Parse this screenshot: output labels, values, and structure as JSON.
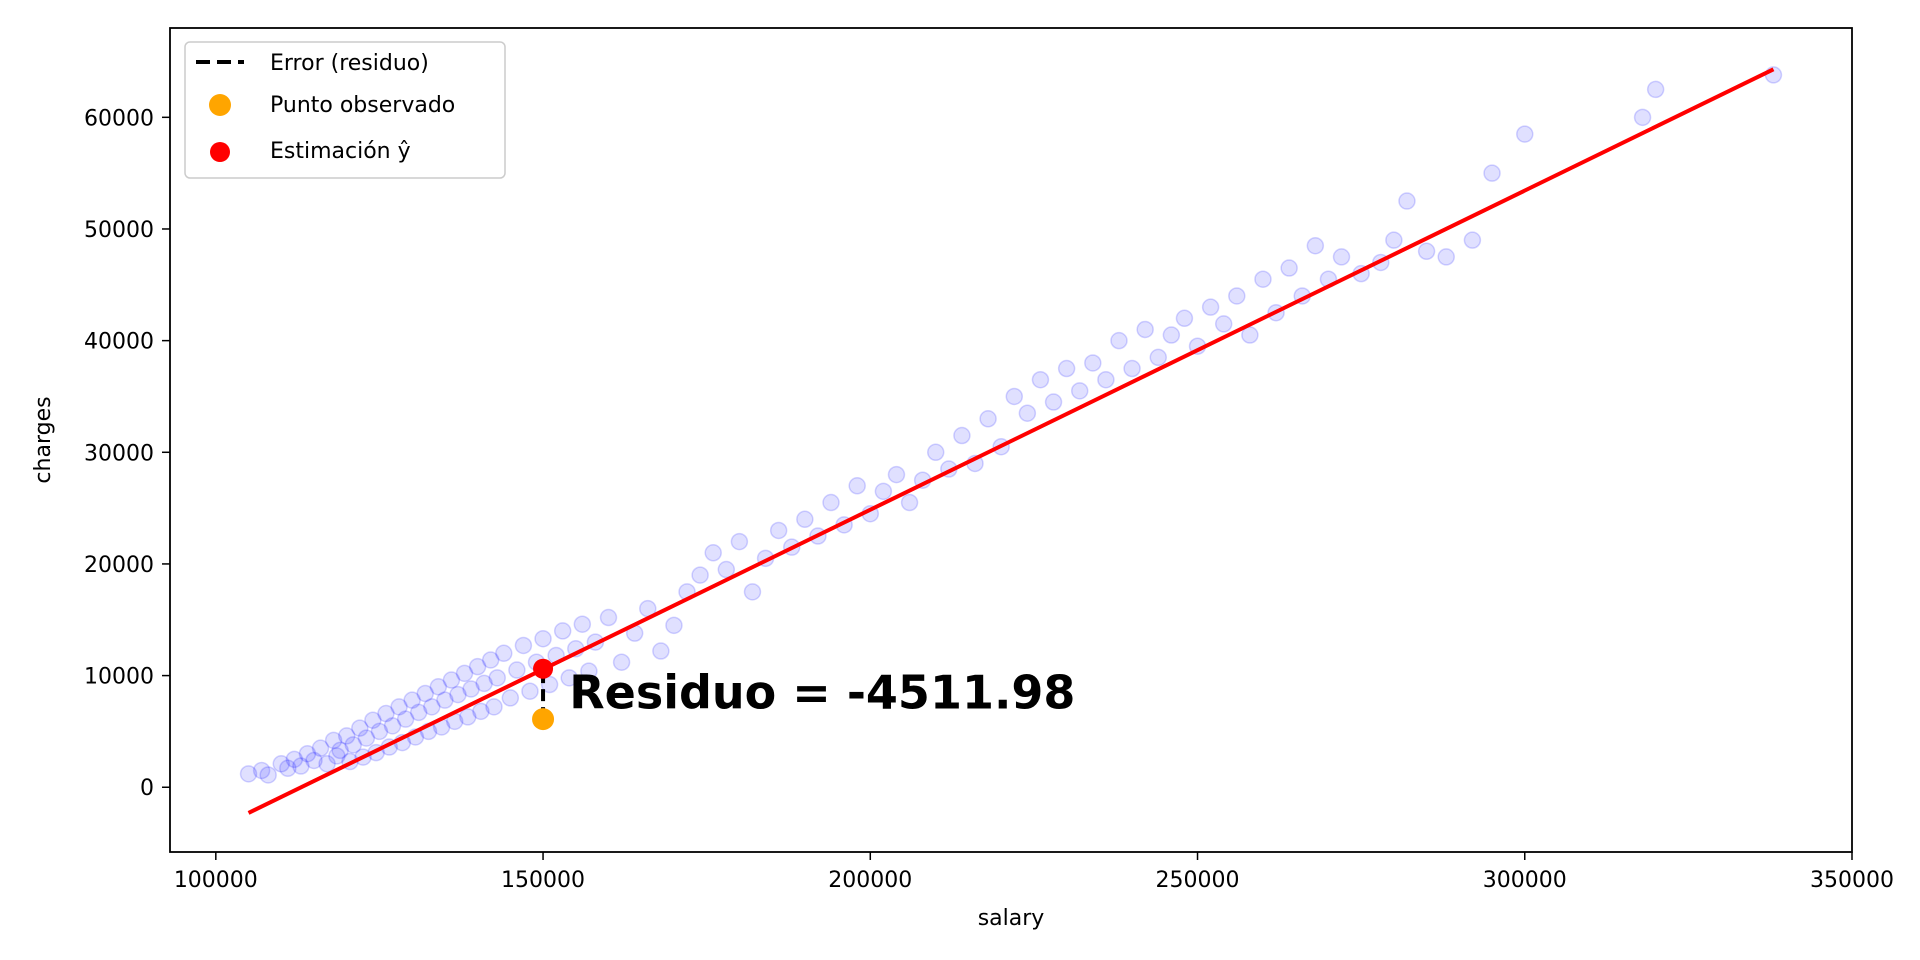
{
  "chart_data": {
    "type": "scatter",
    "xlabel": "salary",
    "ylabel": "charges",
    "xlim": [
      93000,
      350000
    ],
    "ylim": [
      -5800,
      68000
    ],
    "xticks": [
      100000,
      150000,
      200000,
      250000,
      300000,
      350000
    ],
    "yticks": [
      0,
      10000,
      20000,
      30000,
      40000,
      50000,
      60000
    ],
    "grid": false,
    "legend_position": "top-left",
    "legend": [
      {
        "label": "Error (residuo)",
        "kind": "dashed-line",
        "color": "#000000"
      },
      {
        "label": "Punto observado",
        "kind": "marker",
        "color": "#FFA500"
      },
      {
        "label": "Estimación ŷ",
        "kind": "marker",
        "color": "#FF0000"
      }
    ],
    "scatter_series": {
      "color": "#0000FF",
      "opacity": 0.12,
      "points": [
        [
          105000,
          1200
        ],
        [
          107000,
          1500
        ],
        [
          108000,
          1100
        ],
        [
          110000,
          2100
        ],
        [
          111000,
          1700
        ],
        [
          112000,
          2500
        ],
        [
          113000,
          1900
        ],
        [
          114000,
          3000
        ],
        [
          115000,
          2400
        ],
        [
          116000,
          3500
        ],
        [
          117000,
          2100
        ],
        [
          118000,
          4200
        ],
        [
          118500,
          2800
        ],
        [
          119000,
          3300
        ],
        [
          120000,
          4600
        ],
        [
          120500,
          2300
        ],
        [
          121000,
          3800
        ],
        [
          122000,
          5300
        ],
        [
          122500,
          2700
        ],
        [
          123000,
          4400
        ],
        [
          124000,
          6000
        ],
        [
          124500,
          3100
        ],
        [
          125000,
          5000
        ],
        [
          126000,
          6600
        ],
        [
          126500,
          3600
        ],
        [
          127000,
          5500
        ],
        [
          128000,
          7200
        ],
        [
          128500,
          4000
        ],
        [
          129000,
          6100
        ],
        [
          130000,
          7800
        ],
        [
          130500,
          4500
        ],
        [
          131000,
          6700
        ],
        [
          132000,
          8400
        ],
        [
          132500,
          5000
        ],
        [
          133000,
          7200
        ],
        [
          134000,
          9000
        ],
        [
          134500,
          5400
        ],
        [
          135000,
          7800
        ],
        [
          136000,
          9600
        ],
        [
          136500,
          5900
        ],
        [
          137000,
          8300
        ],
        [
          138000,
          10200
        ],
        [
          138500,
          6300
        ],
        [
          139000,
          8800
        ],
        [
          140000,
          10800
        ],
        [
          140500,
          6800
        ],
        [
          141000,
          9300
        ],
        [
          142000,
          11400
        ],
        [
          142500,
          7200
        ],
        [
          143000,
          9800
        ],
        [
          144000,
          12000
        ],
        [
          145000,
          8000
        ],
        [
          146000,
          10500
        ],
        [
          147000,
          12700
        ],
        [
          148000,
          8600
        ],
        [
          149000,
          11200
        ],
        [
          150000,
          13300
        ],
        [
          151000,
          9200
        ],
        [
          152000,
          11800
        ],
        [
          153000,
          14000
        ],
        [
          154000,
          9800
        ],
        [
          155000,
          12400
        ],
        [
          156000,
          14600
        ],
        [
          157000,
          10400
        ],
        [
          158000,
          13000
        ],
        [
          160000,
          15200
        ],
        [
          162000,
          11200
        ],
        [
          164000,
          13800
        ],
        [
          166000,
          16000
        ],
        [
          168000,
          12200
        ],
        [
          170000,
          14500
        ],
        [
          172000,
          17500
        ],
        [
          174000,
          19000
        ],
        [
          176000,
          21000
        ],
        [
          178000,
          19500
        ],
        [
          180000,
          22000
        ],
        [
          182000,
          17500
        ],
        [
          184000,
          20500
        ],
        [
          186000,
          23000
        ],
        [
          188000,
          21500
        ],
        [
          190000,
          24000
        ],
        [
          192000,
          22500
        ],
        [
          194000,
          25500
        ],
        [
          196000,
          23500
        ],
        [
          198000,
          27000
        ],
        [
          200000,
          24500
        ],
        [
          202000,
          26500
        ],
        [
          204000,
          28000
        ],
        [
          206000,
          25500
        ],
        [
          208000,
          27500
        ],
        [
          210000,
          30000
        ],
        [
          212000,
          28500
        ],
        [
          214000,
          31500
        ],
        [
          216000,
          29000
        ],
        [
          218000,
          33000
        ],
        [
          220000,
          30500
        ],
        [
          222000,
          35000
        ],
        [
          224000,
          33500
        ],
        [
          226000,
          36500
        ],
        [
          228000,
          34500
        ],
        [
          230000,
          37500
        ],
        [
          232000,
          35500
        ],
        [
          234000,
          38000
        ],
        [
          236000,
          36500
        ],
        [
          238000,
          40000
        ],
        [
          240000,
          37500
        ],
        [
          242000,
          41000
        ],
        [
          244000,
          38500
        ],
        [
          246000,
          40500
        ],
        [
          248000,
          42000
        ],
        [
          250000,
          39500
        ],
        [
          252000,
          43000
        ],
        [
          254000,
          41500
        ],
        [
          256000,
          44000
        ],
        [
          258000,
          40500
        ],
        [
          260000,
          45500
        ],
        [
          262000,
          42500
        ],
        [
          264000,
          46500
        ],
        [
          266000,
          44000
        ],
        [
          268000,
          48500
        ],
        [
          270000,
          45500
        ],
        [
          272000,
          47500
        ],
        [
          275000,
          46000
        ],
        [
          278000,
          47000
        ],
        [
          280000,
          49000
        ],
        [
          282000,
          52500
        ],
        [
          285000,
          48000
        ],
        [
          288000,
          47500
        ],
        [
          292000,
          49000
        ],
        [
          295000,
          55000
        ],
        [
          300000,
          58500
        ],
        [
          318000,
          60000
        ],
        [
          320000,
          62500
        ],
        [
          338000,
          63800
        ],
        [
          150000,
          6000
        ],
        [
          150000,
          10500
        ]
      ]
    },
    "regression_line": {
      "x": [
        105000,
        338000
      ],
      "y": [
        -2300,
        64300
      ],
      "color": "#FF0000"
    },
    "highlight": {
      "x": 150000,
      "observed": 6100,
      "estimated": 10612,
      "observed_color": "#FFA500",
      "estimated_color": "#FF0000"
    },
    "annotation": {
      "text": "Residuo = -4511.98",
      "x": 154000,
      "y": 8500
    }
  }
}
